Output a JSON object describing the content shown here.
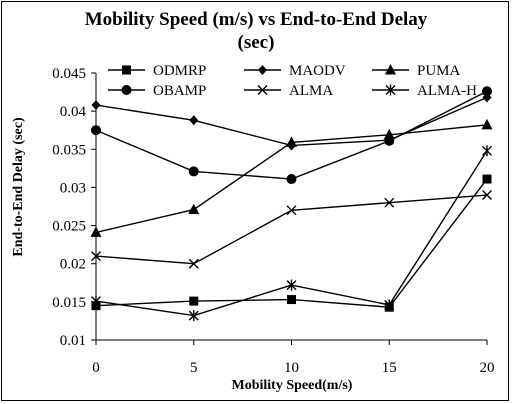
{
  "chart_data": {
    "type": "line",
    "title_line1": "Mobility Speed (m/s) vs End-to-End Delay",
    "title_line2": "(sec)",
    "xlabel": "Mobility Speed(m/s)",
    "ylabel": "End-to-End Delay (sec)",
    "x": [
      0,
      5,
      10,
      15,
      20
    ],
    "xlim": [
      0,
      20
    ],
    "ylim": [
      0.01,
      0.045
    ],
    "y_ticks": [
      "0.01",
      "0.015",
      "0.02",
      "0.025",
      "0.03",
      "0.035",
      "0.04",
      "0.045"
    ],
    "x_ticks": [
      "0",
      "5",
      "10",
      "15",
      "20"
    ],
    "grid": false,
    "legend_position": "top",
    "series": [
      {
        "name": "ODMRP",
        "marker": "square",
        "values": [
          0.0145,
          0.0151,
          0.0153,
          0.0143,
          0.0311
        ]
      },
      {
        "name": "MAODV",
        "marker": "diamond",
        "values": [
          0.0408,
          0.0388,
          0.0355,
          0.0362,
          0.0418
        ]
      },
      {
        "name": "PUMA",
        "marker": "triangle",
        "values": [
          0.0241,
          0.0271,
          0.0359,
          0.0369,
          0.0382
        ]
      },
      {
        "name": "OBAMP",
        "marker": "circle",
        "values": [
          0.0375,
          0.0321,
          0.0311,
          0.0361,
          0.0426
        ]
      },
      {
        "name": "ALMA",
        "marker": "x",
        "values": [
          0.021,
          0.02,
          0.027,
          0.028,
          0.029
        ]
      },
      {
        "name": "ALMA-H",
        "marker": "star",
        "values": [
          0.0151,
          0.0132,
          0.0172,
          0.0146,
          0.0348
        ]
      }
    ]
  }
}
